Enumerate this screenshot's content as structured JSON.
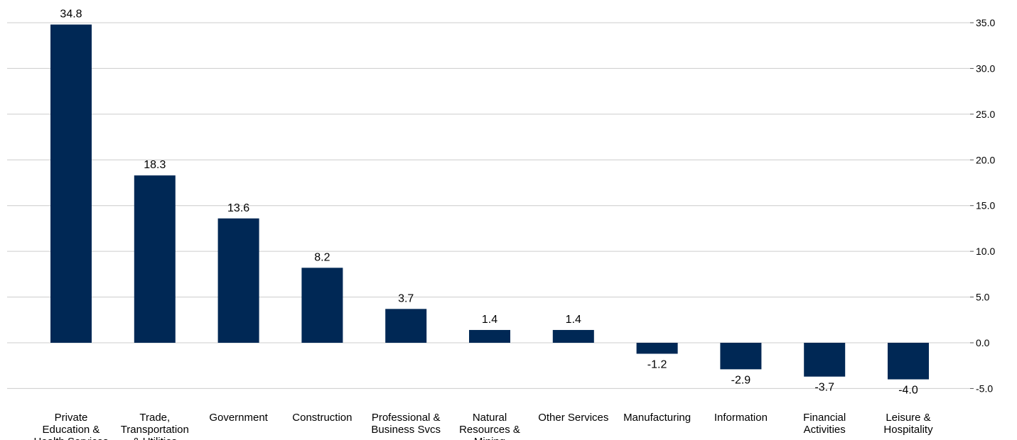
{
  "chart_data": {
    "type": "bar",
    "categories": [
      [
        "Private",
        "Education &",
        "Health Services"
      ],
      [
        "Trade,",
        "Transportation",
        "& Utilities"
      ],
      [
        "Government"
      ],
      [
        "Construction"
      ],
      [
        "Professional &",
        "Business Svcs"
      ],
      [
        "Natural",
        "Resources &",
        "Mining"
      ],
      [
        "Other Services"
      ],
      [
        "Manufacturing"
      ],
      [
        "Information"
      ],
      [
        "Financial",
        "Activities"
      ],
      [
        "Leisure &",
        "Hospitality"
      ]
    ],
    "values": [
      34.8,
      18.3,
      13.6,
      8.2,
      3.7,
      1.4,
      1.4,
      -1.2,
      -2.9,
      -3.7,
      -4.0
    ],
    "data_labels": [
      "34.8",
      "18.3",
      "13.6",
      "8.2",
      "3.7",
      "1.4",
      "1.4",
      "-1.2",
      "-2.9",
      "-3.7",
      "-4.0"
    ],
    "yticks": [
      35.0,
      30.0,
      25.0,
      20.0,
      15.0,
      10.0,
      5.0,
      0.0,
      -5.0
    ],
    "ytick_labels": [
      "35.0",
      "30.0",
      "25.0",
      "20.0",
      "15.0",
      "10.0",
      "5.0",
      "0.0",
      "-5.0"
    ],
    "ylim": [
      -5.0,
      35.0
    ],
    "y_axis_side": "right",
    "grid": true,
    "bar_color": "#002855"
  }
}
